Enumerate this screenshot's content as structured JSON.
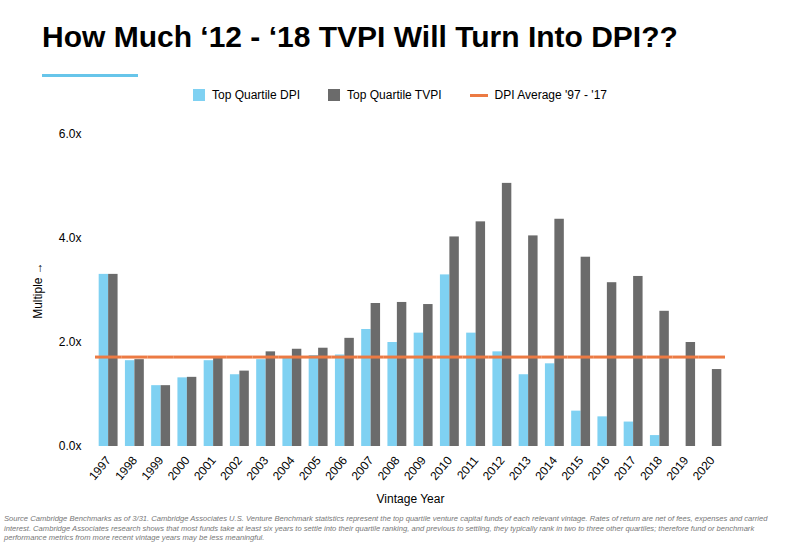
{
  "chart_data": {
    "type": "bar",
    "title": "How Much ‘12 - ‘18 TVPI Will Turn Into DPI??",
    "x_label": "Vintage Year",
    "y_label": "Multiple",
    "caption": "Source Cambridge Benchmarks as of 3/31.  Cambridge Associates U.S. Venture Benchmark statistics represent the top quartile venture capital funds of each relevant vintage. Rates of return are net of fees, expenses and carried interest. Cambridge Associates research shows that most funds take at least six years to settle into their quartile ranking, and previous to settling, they typically rank in two to three other quartiles; therefore fund or benchmark performance metrics from more recent vintage years may be less meaningful.",
    "categories": [
      "1997",
      "1998",
      "1999",
      "2000",
      "2001",
      "2002",
      "2003",
      "2004",
      "2005",
      "2006",
      "2007",
      "2008",
      "2009",
      "2010",
      "2011",
      "2012",
      "2013",
      "2014",
      "2015",
      "2016",
      "2017",
      "2018",
      "2019",
      "2020"
    ],
    "series": [
      {
        "name": "Top Quartile DPI",
        "type": "bar",
        "color": "#7fd1f2",
        "values": [
          3.31,
          1.65,
          1.17,
          1.32,
          1.65,
          1.38,
          1.67,
          1.7,
          1.75,
          1.76,
          2.25,
          2.0,
          2.18,
          3.3,
          2.18,
          1.82,
          1.38,
          1.59,
          0.68,
          0.57,
          0.47,
          0.21,
          null,
          null
        ]
      },
      {
        "name": "Top Quartile TVPI",
        "type": "bar",
        "color": "#6b6b6b",
        "values": [
          3.31,
          1.67,
          1.17,
          1.33,
          1.7,
          1.45,
          1.82,
          1.87,
          1.89,
          2.08,
          2.75,
          2.77,
          2.73,
          4.03,
          4.32,
          5.06,
          4.05,
          4.37,
          3.64,
          3.15,
          3.27,
          2.6,
          2.0,
          1.48
        ]
      },
      {
        "name": "DPI Average '97 - '17",
        "type": "line",
        "color": "#ec7a43",
        "values": [
          1.72,
          1.72,
          1.72,
          1.72,
          1.72,
          1.72,
          1.72,
          1.72,
          1.72,
          1.72,
          1.72,
          1.72,
          1.72,
          1.72,
          1.72,
          1.72,
          1.72,
          1.72,
          1.72,
          1.72,
          1.72,
          1.72,
          1.72,
          1.72
        ]
      }
    ],
    "ylim": [
      0,
      6
    ],
    "yticks": [
      {
        "value": 0,
        "label": "0.0x"
      },
      {
        "value": 2,
        "label": "2.0x"
      },
      {
        "value": 4,
        "label": "4.0x"
      },
      {
        "value": 6,
        "label": "6.0x"
      }
    ],
    "grid": false,
    "legend": "top"
  }
}
